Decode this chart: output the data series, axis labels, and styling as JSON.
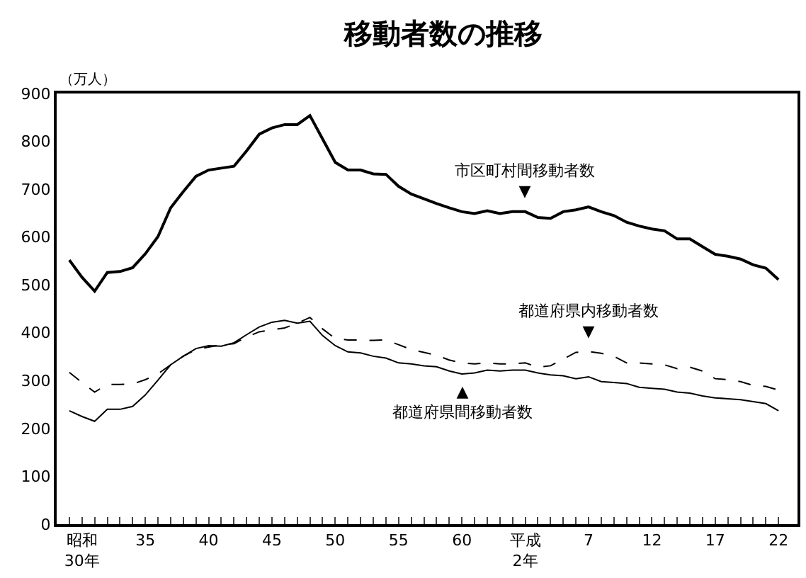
{
  "chart_data": {
    "type": "line",
    "title": "移動者数の推移",
    "ylabel": "（万人）",
    "categories": [
      null,
      "昭和\n30年",
      null,
      null,
      null,
      null,
      "35",
      null,
      null,
      null,
      null,
      "40",
      null,
      null,
      null,
      null,
      "45",
      null,
      null,
      null,
      null,
      "50",
      null,
      null,
      null,
      null,
      "55",
      null,
      null,
      null,
      null,
      "60",
      null,
      null,
      null,
      null,
      "平成\n2年",
      null,
      null,
      null,
      null,
      "7",
      null,
      null,
      null,
      null,
      "12",
      null,
      null,
      null,
      null,
      "17",
      null,
      null,
      null,
      null,
      "22"
    ],
    "series": [
      {
        "color": "#000000",
        "line_style": "solid",
        "values": [
          552,
          516,
          487,
          526,
          528,
          536,
          565,
          601,
          661,
          695,
          727,
          740,
          744,
          748,
          780,
          815,
          828,
          835,
          835,
          854,
          805,
          756,
          740,
          740,
          732,
          731,
          706,
          690,
          680,
          670,
          661,
          653,
          649,
          655,
          649,
          653,
          653,
          641,
          639,
          653,
          657,
          663,
          653,
          645,
          631,
          623,
          617,
          613,
          596,
          596,
          580,
          564,
          560,
          554,
          542,
          535,
          511
        ]
      },
      {
        "color": "#000000",
        "line_style": "dashed",
        "values": [
          317,
          296,
          276,
          292,
          292,
          293,
          302,
          314,
          333,
          351,
          365,
          370,
          375,
          377,
          391,
          402,
          406,
          410,
          420,
          432,
          408,
          388,
          385,
          385,
          384,
          385,
          375,
          365,
          359,
          353,
          343,
          337,
          335,
          337,
          335,
          335,
          337,
          328,
          331,
          345,
          359,
          361,
          357,
          351,
          337,
          337,
          335,
          333,
          325,
          328,
          320,
          304,
          302,
          298,
          290,
          288,
          280
        ]
      },
      {
        "color": "#000000",
        "line_style": "solid",
        "values": [
          237,
          225,
          215,
          240,
          240,
          246,
          270,
          301,
          333,
          351,
          367,
          373,
          372,
          379,
          396,
          412,
          422,
          426,
          420,
          424,
          394,
          373,
          360,
          358,
          351,
          347,
          337,
          335,
          331,
          329,
          320,
          314,
          316,
          322,
          320,
          322,
          322,
          316,
          312,
          310,
          304,
          308,
          298,
          296,
          294,
          286,
          284,
          282,
          276,
          274,
          268,
          264,
          262,
          260,
          256,
          252,
          237
        ]
      }
    ],
    "annotations": [
      {
        "text": "市区町村間移動者数\n▼",
        "x": "平成\n2年",
        "y": 653
      },
      {
        "text": "都道府県内移動者数\n▼",
        "x": "7",
        "y": 361
      },
      {
        "text": "▲\n都道府県間移動者数",
        "x": "60",
        "y": 314
      }
    ],
    "ylim": [
      0,
      900
    ],
    "yticks": [
      0,
      100,
      200,
      300,
      400,
      500,
      600,
      700,
      800,
      900
    ],
    "marker": "none"
  }
}
